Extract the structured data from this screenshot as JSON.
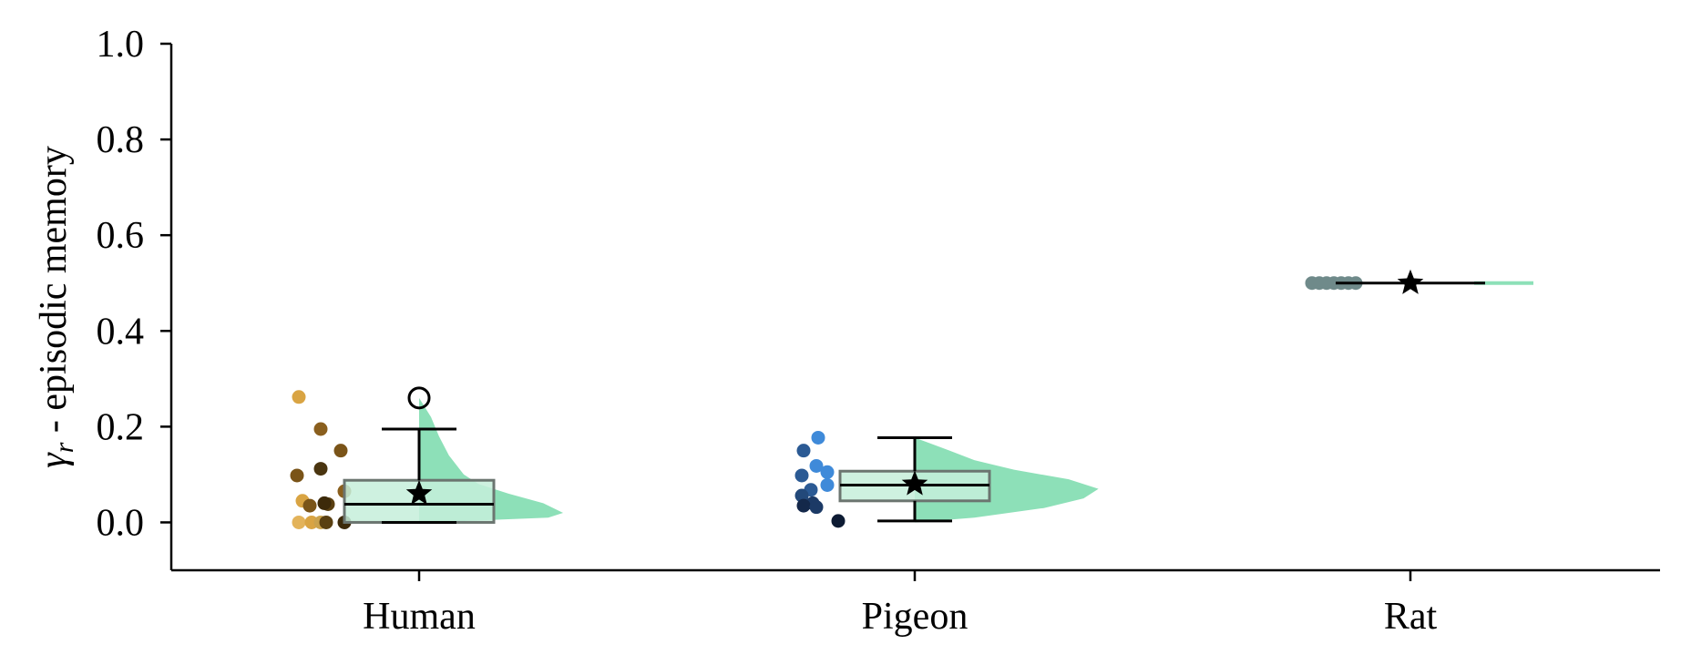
{
  "chart_data": {
    "type": "raincloud",
    "title": "",
    "ylabel_symbol": "γ",
    "ylabel_subscript": "r",
    "ylabel_text": " - episodic memory",
    "ylim": [
      -0.1,
      1.0
    ],
    "yticks": [
      "0.0",
      "0.2",
      "0.4",
      "0.6",
      "0.8",
      "1.0"
    ],
    "categories": [
      "Human",
      "Pigeon",
      "Rat"
    ],
    "grid": false,
    "colors": {
      "violin": "#8de0b8",
      "box_fill": "#c5eedb",
      "box_edge": "#6b7570",
      "line": "#000000",
      "rat_points": "#6f8a8a"
    },
    "groups": [
      {
        "name": "Human",
        "box": {
          "q1": 0.0,
          "median": 0.038,
          "q3": 0.088,
          "whisker_low": 0.0,
          "whisker_high": 0.195
        },
        "mean": 0.06,
        "outliers": [
          0.26
        ],
        "violin": [
          [
            0.0,
            0.012
          ],
          [
            0.01,
            0.13
          ],
          [
            0.02,
            0.145
          ],
          [
            0.04,
            0.125
          ],
          [
            0.06,
            0.09
          ],
          [
            0.08,
            0.06
          ],
          [
            0.1,
            0.045
          ],
          [
            0.14,
            0.03
          ],
          [
            0.18,
            0.02
          ],
          [
            0.22,
            0.012
          ],
          [
            0.26,
            0.0
          ]
        ],
        "points": [
          {
            "y": 0.262,
            "c": "#d9a443"
          },
          {
            "y": 0.195,
            "c": "#8a5f1e"
          },
          {
            "y": 0.15,
            "c": "#7a5418"
          },
          {
            "y": 0.112,
            "c": "#4a3510"
          },
          {
            "y": 0.098,
            "c": "#7a5418"
          },
          {
            "y": 0.065,
            "c": "#8a5f1e"
          },
          {
            "y": 0.045,
            "c": "#d9a443"
          },
          {
            "y": 0.038,
            "c": "#5a4012"
          },
          {
            "y": 0.04,
            "c": "#3d2a0a"
          },
          {
            "y": 0.035,
            "c": "#7a5418"
          },
          {
            "y": 0.0,
            "c": "#e3b35a"
          },
          {
            "y": 0.0,
            "c": "#d9a443"
          },
          {
            "y": 0.0,
            "c": "#caa24d"
          },
          {
            "y": 0.0,
            "c": "#5a4012"
          },
          {
            "y": 0.0,
            "c": "#3d2a0a"
          }
        ]
      },
      {
        "name": "Pigeon",
        "box": {
          "q1": 0.045,
          "median": 0.078,
          "q3": 0.107,
          "whisker_low": 0.003,
          "whisker_high": 0.177
        },
        "mean": 0.08,
        "outliers": [],
        "violin": [
          [
            0.0,
            0.0
          ],
          [
            0.01,
            0.06
          ],
          [
            0.03,
            0.13
          ],
          [
            0.05,
            0.17
          ],
          [
            0.07,
            0.185
          ],
          [
            0.09,
            0.155
          ],
          [
            0.11,
            0.1
          ],
          [
            0.13,
            0.06
          ],
          [
            0.15,
            0.035
          ],
          [
            0.177,
            0.0
          ]
        ],
        "points": [
          {
            "y": 0.177,
            "c": "#3f8ad9"
          },
          {
            "y": 0.15,
            "c": "#2b5a94"
          },
          {
            "y": 0.118,
            "c": "#3f8ad9"
          },
          {
            "y": 0.105,
            "c": "#3f8ad9"
          },
          {
            "y": 0.098,
            "c": "#2b5a94"
          },
          {
            "y": 0.078,
            "c": "#3f8ad9"
          },
          {
            "y": 0.068,
            "c": "#2b5a94"
          },
          {
            "y": 0.056,
            "c": "#23497a"
          },
          {
            "y": 0.04,
            "c": "#1c3a66"
          },
          {
            "y": 0.035,
            "c": "#14284a"
          },
          {
            "y": 0.032,
            "c": "#1c3a66"
          },
          {
            "y": 0.003,
            "c": "#0d1b33"
          }
        ]
      },
      {
        "name": "Rat",
        "box": {
          "q1": 0.5,
          "median": 0.5,
          "q3": 0.5,
          "whisker_low": 0.5,
          "whisker_high": 0.5
        },
        "mean": 0.5,
        "outliers": [],
        "violin": [],
        "points": [
          {
            "y": 0.5,
            "c": "#6f8a8a"
          },
          {
            "y": 0.5,
            "c": "#6f8a8a"
          },
          {
            "y": 0.5,
            "c": "#6f8a8a"
          },
          {
            "y": 0.5,
            "c": "#6f8a8a"
          },
          {
            "y": 0.5,
            "c": "#6f8a8a"
          },
          {
            "y": 0.5,
            "c": "#6f8a8a"
          },
          {
            "y": 0.5,
            "c": "#6f8a8a"
          }
        ]
      }
    ]
  }
}
